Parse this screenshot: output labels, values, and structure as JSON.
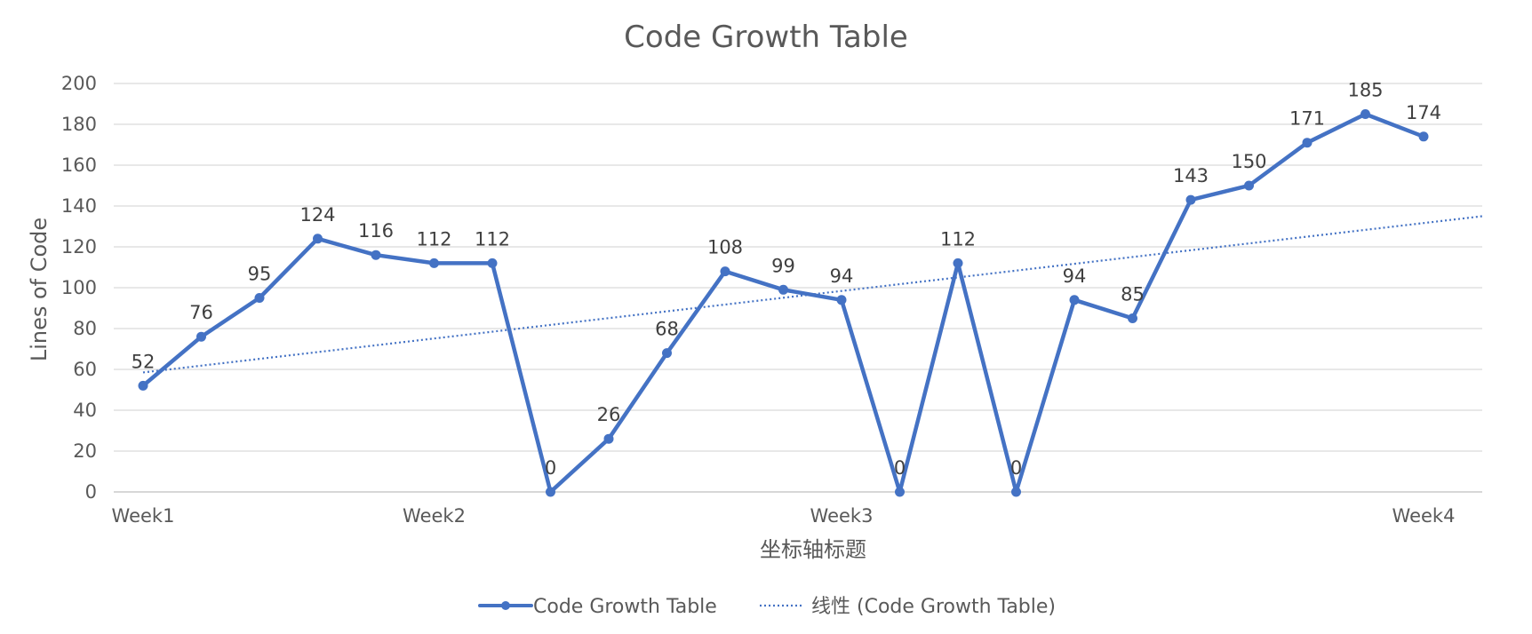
{
  "chart_data": {
    "type": "line",
    "title": "Code Growth Table",
    "xlabel": "坐标轴标题",
    "ylabel": "Lines of Code",
    "ylim": [
      0,
      200
    ],
    "y_ticks": [
      0,
      20,
      40,
      60,
      80,
      100,
      120,
      140,
      160,
      180,
      200
    ],
    "x_tick_labels": [
      {
        "label": "Week1",
        "index": 0
      },
      {
        "label": "Week2",
        "index": 5
      },
      {
        "label": "Week3",
        "index": 12
      },
      {
        "label": "Week4",
        "index": 22
      }
    ],
    "grid": true,
    "legend_position": "bottom",
    "series": [
      {
        "name": "Code Growth Table",
        "color": "#4472C4",
        "values": [
          52,
          76,
          95,
          124,
          116,
          112,
          112,
          0,
          26,
          68,
          108,
          99,
          94,
          0,
          112,
          0,
          94,
          85,
          143,
          150,
          171,
          185,
          174
        ]
      }
    ],
    "trendline": {
      "name": "线性 (Code Growth Table)",
      "type": "linear",
      "color": "#4472C4",
      "start_value": 58.5,
      "end_value": 135
    }
  }
}
